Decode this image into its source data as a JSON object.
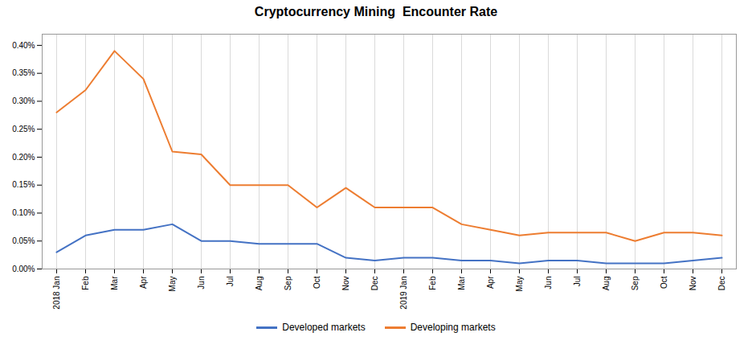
{
  "chart_data": {
    "type": "line",
    "title": "Cryptocurrency Mining  Encounter Rate",
    "categories": [
      "2018 Jan",
      "Feb",
      "Mar",
      "Apr",
      "May",
      "Jun",
      "Jul",
      "Aug",
      "Sep",
      "Oct",
      "Nov",
      "Dec",
      "2019 Jan",
      "Feb",
      "Mar",
      "Apr",
      "May",
      "Jun",
      "Jul",
      "Aug",
      "Sep",
      "Oct",
      "Nov",
      "Dec"
    ],
    "series": [
      {
        "name": "Developed markets",
        "color": "#4472C4",
        "values": [
          0.0003,
          0.0006,
          0.0007,
          0.0007,
          0.0008,
          0.0005,
          0.0005,
          0.00045,
          0.00045,
          0.00045,
          0.0002,
          0.00015,
          0.0002,
          0.0002,
          0.00015,
          0.00015,
          0.0001,
          0.00015,
          0.00015,
          0.0001,
          0.0001,
          0.0001,
          0.00015,
          0.0002
        ]
      },
      {
        "name": "Developing markets",
        "color": "#ED7D31",
        "values": [
          0.0028,
          0.0032,
          0.0039,
          0.0034,
          0.0021,
          0.00205,
          0.0015,
          0.0015,
          0.0015,
          0.0011,
          0.00145,
          0.0011,
          0.0011,
          0.0011,
          0.0008,
          0.0007,
          0.0006,
          0.00065,
          0.00065,
          0.00065,
          0.0005,
          0.00065,
          0.00065,
          0.0006
        ]
      }
    ],
    "ylim": [
      0.0,
      0.0042
    ],
    "yticks": [
      {
        "value": 0.0,
        "label": "0.00%"
      },
      {
        "value": 0.0005,
        "label": "0.05%"
      },
      {
        "value": 0.001,
        "label": "0.10%"
      },
      {
        "value": 0.0015,
        "label": "0.15%"
      },
      {
        "value": 0.002,
        "label": "0.20%"
      },
      {
        "value": 0.0025,
        "label": "0.25%"
      },
      {
        "value": 0.003,
        "label": "0.30%"
      },
      {
        "value": 0.0035,
        "label": "0.35%"
      },
      {
        "value": 0.004,
        "label": "0.40%"
      }
    ],
    "grid": true,
    "legend": "bottom"
  }
}
